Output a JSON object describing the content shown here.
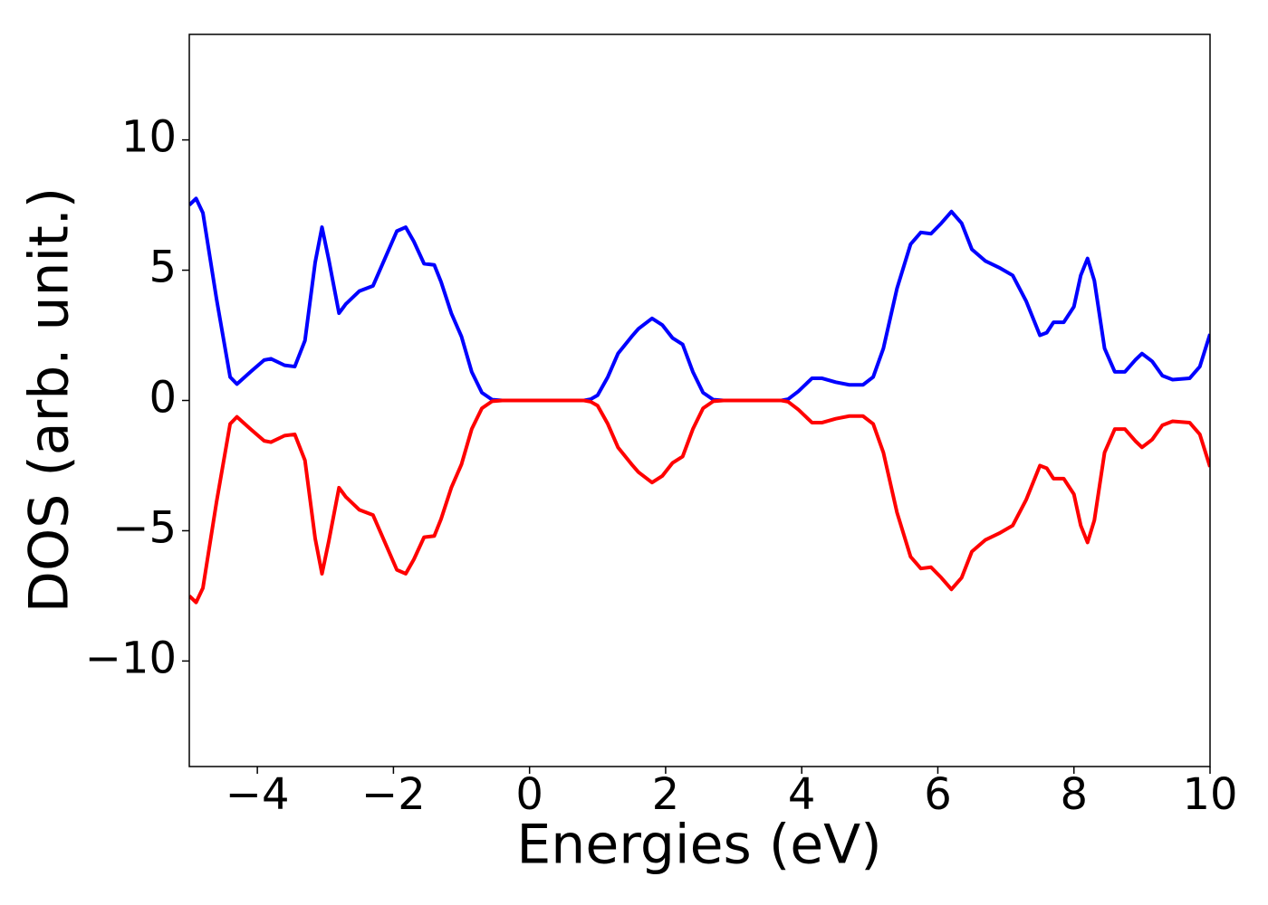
{
  "chart_data": {
    "type": "line",
    "xlabel": "Energies (eV)",
    "ylabel": "DOS (arb. unit.)",
    "x": [
      -5,
      -4.9,
      -4.8,
      -4.6,
      -4.4,
      -4.3,
      -4.1,
      -3.9,
      -3.8,
      -3.6,
      -3.45,
      -3.3,
      -3.15,
      -3.05,
      -2.95,
      -2.8,
      -2.7,
      -2.5,
      -2.3,
      -2.1,
      -1.95,
      -1.82,
      -1.7,
      -1.55,
      -1.4,
      -1.3,
      -1.15,
      -1.0,
      -0.85,
      -0.7,
      -0.55,
      -0.4,
      0,
      0.4,
      0.8,
      0.9,
      1.0,
      1.15,
      1.3,
      1.5,
      1.6,
      1.8,
      1.95,
      2.1,
      2.25,
      2.4,
      2.55,
      2.7,
      2.85,
      3.3,
      3.7,
      3.8,
      3.95,
      4.15,
      4.3,
      4.5,
      4.7,
      4.9,
      5.05,
      5.2,
      5.4,
      5.6,
      5.75,
      5.9,
      6.05,
      6.2,
      6.35,
      6.5,
      6.7,
      6.9,
      7.1,
      7.3,
      7.5,
      7.6,
      7.7,
      7.85,
      8.0,
      8.1,
      8.2,
      8.3,
      8.45,
      8.6,
      8.75,
      8.9,
      9.0,
      9.15,
      9.3,
      9.45,
      9.7,
      9.85,
      10
    ],
    "series": [
      {
        "color": "#0000ff",
        "values": [
          7.5,
          7.75,
          7.2,
          3.9,
          0.9,
          0.63,
          1.1,
          1.55,
          1.6,
          1.35,
          1.3,
          2.3,
          5.3,
          6.65,
          5.4,
          3.35,
          3.7,
          4.2,
          4.4,
          5.6,
          6.5,
          6.65,
          6.1,
          5.25,
          5.2,
          4.55,
          3.35,
          2.45,
          1.1,
          0.3,
          0.03,
          0,
          0,
          0,
          0,
          0.05,
          0.2,
          0.9,
          1.8,
          2.45,
          2.75,
          3.15,
          2.9,
          2.4,
          2.15,
          1.1,
          0.3,
          0.03,
          0,
          0,
          0,
          0.05,
          0.35,
          0.85,
          0.85,
          0.7,
          0.6,
          0.6,
          0.9,
          2.0,
          4.3,
          6.0,
          6.45,
          6.4,
          6.8,
          7.25,
          6.8,
          5.8,
          5.35,
          5.1,
          4.8,
          3.8,
          2.5,
          2.6,
          3.0,
          3.0,
          3.6,
          4.8,
          5.45,
          4.6,
          2.0,
          1.1,
          1.1,
          1.55,
          1.8,
          1.5,
          0.95,
          0.8,
          0.85,
          1.3,
          2.55
        ]
      },
      {
        "color": "#ff0000",
        "values": [
          -7.5,
          -7.75,
          -7.2,
          -3.9,
          -0.9,
          -0.63,
          -1.1,
          -1.55,
          -1.6,
          -1.35,
          -1.3,
          -2.3,
          -5.3,
          -6.65,
          -5.4,
          -3.35,
          -3.7,
          -4.2,
          -4.4,
          -5.6,
          -6.5,
          -6.65,
          -6.1,
          -5.25,
          -5.2,
          -4.55,
          -3.35,
          -2.45,
          -1.1,
          -0.3,
          -0.03,
          0,
          0,
          0,
          0,
          -0.05,
          -0.2,
          -0.9,
          -1.8,
          -2.45,
          -2.75,
          -3.15,
          -2.9,
          -2.4,
          -2.15,
          -1.1,
          -0.3,
          -0.03,
          0,
          0,
          0,
          -0.05,
          -0.35,
          -0.85,
          -0.85,
          -0.7,
          -0.6,
          -0.6,
          -0.9,
          -2.0,
          -4.3,
          -6.0,
          -6.45,
          -6.4,
          -6.8,
          -7.25,
          -6.8,
          -5.8,
          -5.35,
          -5.1,
          -4.8,
          -3.8,
          -2.5,
          -2.6,
          -3.0,
          -3.0,
          -3.6,
          -4.8,
          -5.45,
          -4.6,
          -2.0,
          -1.1,
          -1.1,
          -1.55,
          -1.8,
          -1.5,
          -0.95,
          -0.8,
          -0.85,
          -1.3,
          -2.55
        ]
      }
    ],
    "xlim": [
      -5,
      10
    ],
    "xticks": [
      {
        "value": -4,
        "label": "−4"
      },
      {
        "value": -2,
        "label": "−2"
      },
      0,
      2,
      4,
      6,
      8,
      10
    ],
    "ylim": [
      -14.05,
      14.05
    ],
    "yticks": [
      {
        "value": -10,
        "label": "−10"
      },
      {
        "value": -5,
        "label": "−5"
      },
      0,
      5,
      10
    ],
    "grid": false
  }
}
